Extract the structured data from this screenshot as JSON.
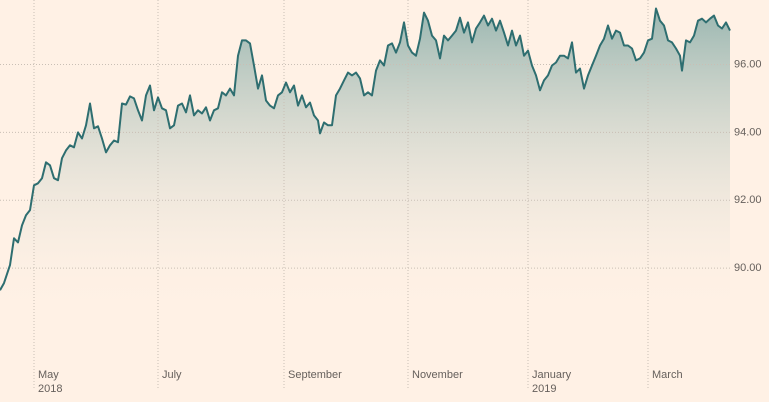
{
  "chart_data": {
    "type": "area",
    "x": [
      0,
      2,
      5,
      7,
      9,
      11,
      13,
      15,
      17,
      19,
      21,
      23,
      25,
      27,
      29,
      31,
      33,
      35,
      37,
      39,
      41,
      43,
      45,
      47,
      49,
      51,
      53,
      55,
      57,
      59,
      61,
      63,
      65,
      67,
      69,
      71,
      73,
      75,
      77,
      79,
      81,
      83,
      85,
      87,
      89,
      91,
      93,
      95,
      97,
      99,
      101,
      103,
      105,
      107,
      109,
      111,
      113,
      115,
      117,
      119,
      121,
      123,
      125,
      127,
      129,
      131,
      133,
      135,
      137,
      139,
      141,
      143,
      145,
      147,
      149,
      151,
      153,
      155,
      157,
      159,
      160,
      162,
      164,
      166,
      168,
      170,
      172,
      174,
      176,
      178,
      180,
      182,
      184,
      186,
      188,
      190,
      192,
      194,
      196,
      198,
      200,
      202,
      204,
      206,
      208,
      210,
      212,
      214,
      216,
      218,
      220,
      222,
      224,
      226,
      228,
      230,
      232,
      234,
      236,
      238,
      240,
      242,
      244,
      246,
      248,
      250,
      252,
      254,
      256,
      258,
      260,
      262,
      264,
      266,
      268,
      270,
      272,
      274,
      276,
      278,
      280,
      282,
      284,
      286,
      288,
      290,
      292,
      294,
      296,
      298,
      300,
      302,
      304,
      306,
      308,
      310,
      312,
      314,
      316,
      318,
      320,
      322,
      324,
      326,
      328,
      330,
      332,
      334,
      336,
      338,
      340,
      341,
      343,
      345,
      347,
      349,
      351,
      353,
      355,
      357,
      359,
      361,
      363,
      365
    ],
    "values": [
      89.35,
      89.56,
      90.09,
      90.88,
      90.76,
      91.26,
      91.56,
      91.71,
      92.44,
      92.5,
      92.65,
      93.12,
      93.03,
      92.65,
      92.59,
      93.24,
      93.47,
      93.62,
      93.56,
      94.0,
      93.82,
      94.21,
      94.85,
      94.12,
      94.18,
      93.82,
      93.41,
      93.62,
      93.76,
      93.71,
      94.85,
      94.82,
      95.06,
      95.0,
      94.65,
      94.35,
      95.09,
      95.38,
      94.65,
      95.03,
      94.71,
      94.65,
      94.12,
      94.21,
      94.79,
      94.85,
      94.59,
      95.09,
      94.5,
      94.65,
      94.56,
      94.74,
      94.35,
      94.65,
      94.71,
      95.18,
      95.09,
      95.29,
      95.09,
      96.26,
      96.71,
      96.71,
      96.62,
      95.97,
      95.29,
      95.68,
      94.94,
      94.79,
      94.71,
      95.09,
      95.18,
      95.47,
      95.18,
      95.38,
      94.79,
      95.09,
      94.74,
      94.88,
      94.5,
      94.35,
      93.97,
      94.29,
      94.21,
      94.21,
      95.09,
      95.29,
      95.53,
      95.76,
      95.68,
      95.76,
      95.59,
      95.09,
      95.18,
      95.09,
      95.82,
      96.12,
      95.97,
      96.56,
      96.62,
      96.35,
      96.65,
      97.24,
      96.56,
      96.35,
      96.26,
      96.76,
      97.53,
      97.29,
      96.85,
      96.71,
      96.18,
      96.85,
      96.71,
      96.85,
      97.0,
      97.38,
      96.94,
      97.24,
      96.65,
      97.06,
      97.24,
      97.44,
      97.15,
      97.35,
      97.0,
      97.29,
      96.94,
      96.56,
      97.0,
      96.56,
      96.85,
      96.26,
      96.41,
      95.97,
      95.68,
      95.24,
      95.53,
      95.68,
      95.97,
      96.06,
      96.26,
      96.26,
      96.18,
      96.65,
      95.76,
      95.88,
      95.29,
      95.68,
      95.97,
      96.26,
      96.56,
      96.76,
      97.15,
      96.76,
      97.0,
      96.94,
      96.56,
      96.56,
      96.47,
      96.12,
      96.18,
      96.35,
      96.71,
      96.76,
      97.65,
      97.29,
      97.15,
      96.71,
      96.65,
      96.47,
      96.26,
      95.82,
      96.71,
      96.65,
      96.85,
      97.29,
      97.35,
      97.24,
      97.35,
      97.44,
      97.15,
      97.06,
      97.24,
      97.0
    ],
    "color": "#2e6e70",
    "xlim": [
      0,
      365
    ],
    "xticks": [
      {
        "value": 17,
        "label": "May"
      },
      {
        "value": 79,
        "label": "July"
      },
      {
        "value": 142,
        "label": "September"
      },
      {
        "value": 204,
        "label": "November"
      },
      {
        "value": 264,
        "label": "January"
      },
      {
        "value": 324,
        "label": "March"
      }
    ],
    "xtick_sublabels": [
      {
        "value": 17,
        "label": "2018"
      },
      {
        "value": 264,
        "label": "2019"
      }
    ],
    "ylim": [
      87,
      97.9
    ],
    "yticks": [
      {
        "value": 90,
        "label": "90.00"
      },
      {
        "value": 92,
        "label": "92.00"
      },
      {
        "value": 94,
        "label": "94.00"
      },
      {
        "value": 96,
        "label": "96.00"
      }
    ],
    "grid": true
  }
}
